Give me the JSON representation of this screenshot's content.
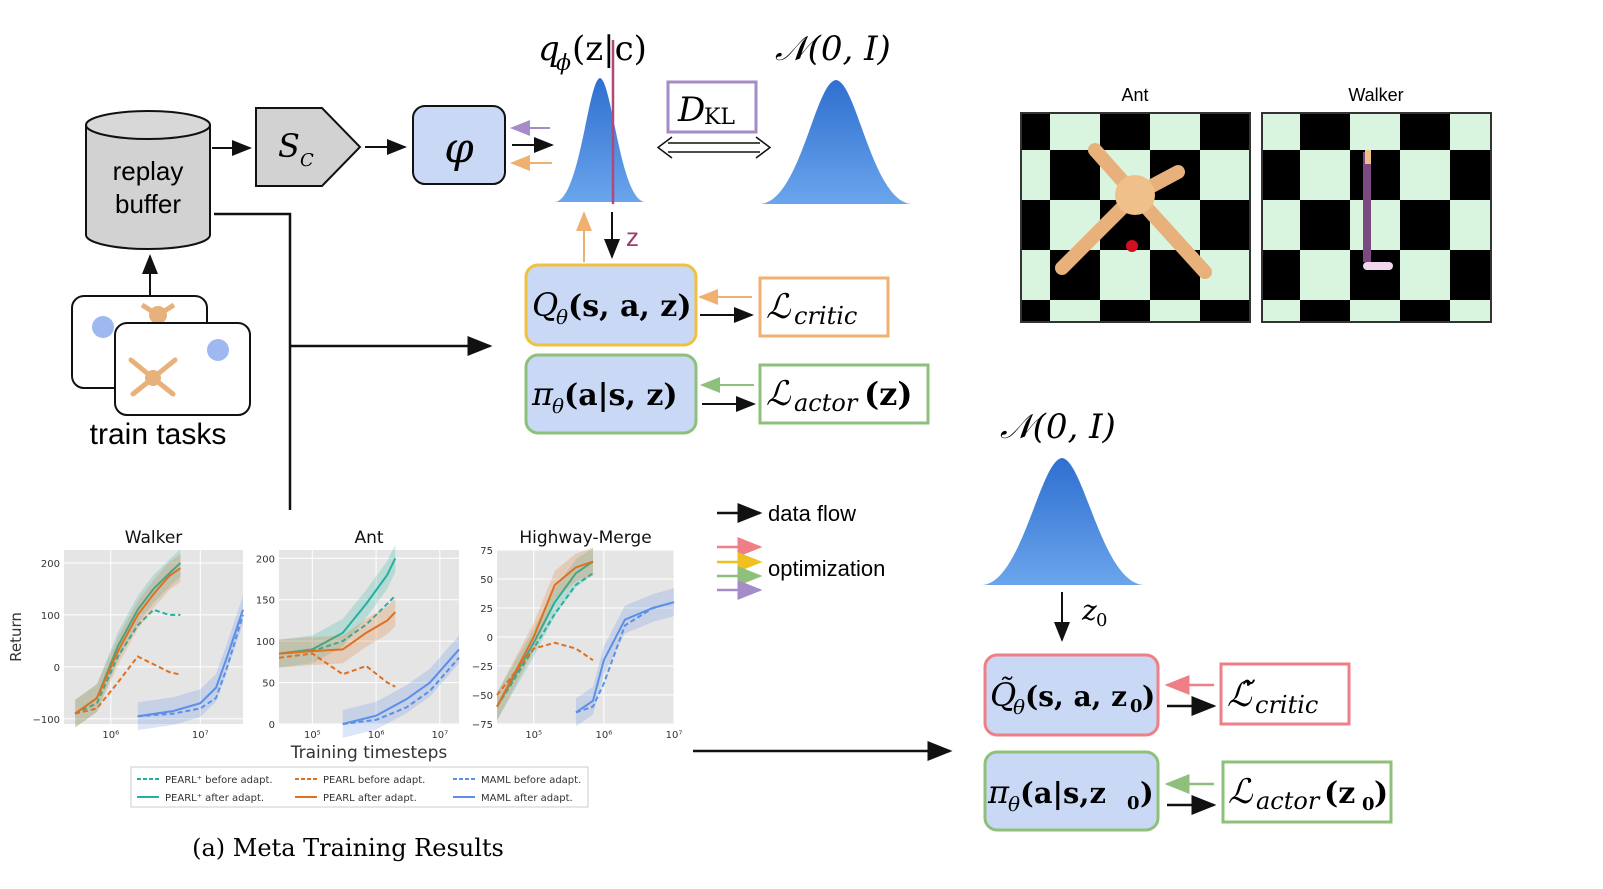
{
  "diagram": {
    "replay_buffer": [
      "replay",
      "buffer"
    ],
    "sampler": "S",
    "sampler_sub": "C",
    "encoder": "φ",
    "posterior": {
      "q": "q",
      "phi": "ϕ",
      "arg": "(z|c)"
    },
    "prior": "𝒩(0, I)",
    "kl": {
      "d": "D",
      "sub": "KL"
    },
    "z_label": "z",
    "q_func": {
      "q": "Q",
      "theta": "θ",
      "arg": "(s, a, z)"
    },
    "q_loss": {
      "l": "ℒ",
      "sub": "critic"
    },
    "policy": {
      "pi": "π",
      "theta": "θ",
      "arg": "(a|s, z)"
    },
    "policy_loss": {
      "l": "ℒ",
      "sub": "actor",
      "arg": "(z)"
    },
    "train_tasks": "train tasks",
    "legend_data_flow": "data flow",
    "legend_optimization": "optimization",
    "prior2": "𝒩(0, I)",
    "z0": {
      "z": "z",
      "sub": "0"
    },
    "q_func2": {
      "q": "Q̃",
      "theta": "θ",
      "arg": "(s, a, z",
      "sub": "0",
      "close": ")"
    },
    "q_loss2": {
      "l": "ℒ̃",
      "sub": "critic"
    },
    "policy2": {
      "pi": "π",
      "theta": "θ",
      "arg": "(a|s,z",
      "sub": "0",
      "close": ")"
    },
    "policy_loss2": {
      "l": "ℒ",
      "sub": "actor",
      "arg": "(z",
      "sub2": "0",
      "close": ")"
    }
  },
  "env_images": {
    "ant_title": "Ant",
    "walker_title": "Walker"
  },
  "colors": {
    "blue_box": "#c9d8f5",
    "orange": "#f0c060",
    "green": "#8ec07c",
    "purple": "#a58cc8",
    "red": "#ef7f86",
    "gauss": "#4f8fdc",
    "pearl_plus": "#21b3a0",
    "pearl": "#e07020",
    "maml": "#5b8fe8",
    "checker_light": "#d9f5df"
  },
  "chart_data": [
    {
      "type": "line",
      "title": "Walker",
      "ylabel": "Return",
      "xlabel": "",
      "xscale": "log",
      "xlim": [
        300000,
        30000000
      ],
      "ylim": [
        -110,
        225
      ],
      "yticks": [
        "−100",
        "0",
        "100",
        "200"
      ],
      "ytick_values": [
        -100,
        0,
        100,
        200
      ],
      "xticks": [
        "10⁶",
        "10⁷"
      ],
      "xtick_values": [
        1000000,
        10000000
      ],
      "grid": true,
      "series": [
        {
          "name": "PEARL⁺ before adapt.",
          "dashed": true,
          "color": "#21b3a0",
          "x": [
            400000,
            700000,
            1200000,
            2000000,
            3000000,
            4500000,
            6000000
          ],
          "y": [
            -90,
            -70,
            20,
            80,
            110,
            100,
            100
          ]
        },
        {
          "name": "PEARL⁺ after adapt.",
          "dashed": false,
          "color": "#21b3a0",
          "x": [
            400000,
            700000,
            1200000,
            2000000,
            3000000,
            4500000,
            6000000
          ],
          "y": [
            -90,
            -60,
            40,
            110,
            150,
            180,
            200
          ]
        },
        {
          "name": "PEARL before adapt.",
          "dashed": true,
          "color": "#e07020",
          "x": [
            400000,
            700000,
            1200000,
            2000000,
            3000000,
            4500000,
            6000000
          ],
          "y": [
            -90,
            -80,
            -30,
            20,
            5,
            -10,
            -15
          ]
        },
        {
          "name": "PEARL after adapt.",
          "dashed": false,
          "color": "#e07020",
          "x": [
            400000,
            700000,
            1200000,
            2000000,
            3000000,
            4500000,
            6000000
          ],
          "y": [
            -90,
            -60,
            30,
            100,
            140,
            175,
            190
          ]
        },
        {
          "name": "MAML before adapt.",
          "dashed": true,
          "color": "#5b8fe8",
          "x": [
            2000000,
            5000000,
            10000000,
            15000000,
            20000000,
            30000000
          ],
          "y": [
            -95,
            -90,
            -80,
            -60,
            0,
            100
          ]
        },
        {
          "name": "MAML after adapt.",
          "dashed": false,
          "color": "#5b8fe8",
          "x": [
            2000000,
            5000000,
            10000000,
            15000000,
            20000000,
            30000000
          ],
          "y": [
            -95,
            -85,
            -70,
            -40,
            20,
            110
          ]
        }
      ]
    },
    {
      "type": "line",
      "title": "Ant",
      "xlabel": "Training timesteps",
      "ylabel": "",
      "xscale": "log",
      "xlim": [
        30000,
        20000000
      ],
      "ylim": [
        0,
        210
      ],
      "yticks": [
        "0",
        "50",
        "100",
        "150",
        "200"
      ],
      "ytick_values": [
        0,
        50,
        100,
        150,
        200
      ],
      "xticks": [
        "10⁵",
        "10⁶",
        "10⁷"
      ],
      "xtick_values": [
        100000,
        1000000,
        10000000
      ],
      "grid": true,
      "series": [
        {
          "name": "PEARL⁺ before adapt.",
          "dashed": true,
          "color": "#21b3a0",
          "x": [
            30000,
            100000,
            300000,
            700000,
            1500000,
            2000000
          ],
          "y": [
            85,
            88,
            100,
            120,
            145,
            155
          ]
        },
        {
          "name": "PEARL⁺ after adapt.",
          "dashed": false,
          "color": "#21b3a0",
          "x": [
            30000,
            100000,
            300000,
            700000,
            1500000,
            2000000
          ],
          "y": [
            85,
            90,
            110,
            145,
            180,
            200
          ]
        },
        {
          "name": "PEARL before adapt.",
          "dashed": true,
          "color": "#e07020",
          "x": [
            30000,
            100000,
            300000,
            700000,
            1500000,
            2000000
          ],
          "y": [
            80,
            85,
            60,
            70,
            50,
            45
          ]
        },
        {
          "name": "PEARL after adapt.",
          "dashed": false,
          "color": "#e07020",
          "x": [
            30000,
            100000,
            300000,
            700000,
            1500000,
            2000000
          ],
          "y": [
            85,
            88,
            90,
            110,
            125,
            135
          ]
        },
        {
          "name": "MAML before adapt.",
          "dashed": true,
          "color": "#5b8fe8",
          "x": [
            300000,
            1000000,
            3000000,
            7000000,
            20000000
          ],
          "y": [
            0,
            5,
            20,
            40,
            80
          ]
        },
        {
          "name": "MAML after adapt.",
          "dashed": false,
          "color": "#5b8fe8",
          "x": [
            300000,
            1000000,
            3000000,
            7000000,
            20000000
          ],
          "y": [
            0,
            10,
            30,
            50,
            90
          ]
        }
      ]
    },
    {
      "type": "line",
      "title": "Highway-Merge",
      "xlabel": "",
      "ylabel": "",
      "xscale": "log",
      "xlim": [
        30000,
        10000000
      ],
      "ylim": [
        -75,
        75
      ],
      "yticks": [
        "−75",
        "−50",
        "−25",
        "0",
        "25",
        "50",
        "75"
      ],
      "ytick_values": [
        -75,
        -50,
        -25,
        0,
        25,
        50,
        75
      ],
      "xticks": [
        "10⁵",
        "10⁶",
        "10⁷"
      ],
      "xtick_values": [
        100000,
        1000000,
        10000000
      ],
      "grid": true,
      "series": [
        {
          "name": "PEARL⁺ before adapt.",
          "dashed": true,
          "color": "#21b3a0",
          "x": [
            30000,
            100000,
            200000,
            400000,
            700000
          ],
          "y": [
            -60,
            -10,
            20,
            45,
            55
          ]
        },
        {
          "name": "PEARL⁺ after adapt.",
          "dashed": false,
          "color": "#21b3a0",
          "x": [
            30000,
            100000,
            200000,
            400000,
            700000
          ],
          "y": [
            -60,
            -5,
            30,
            55,
            65
          ]
        },
        {
          "name": "PEARL before adapt.",
          "dashed": true,
          "color": "#e07020",
          "x": [
            30000,
            100000,
            200000,
            400000,
            700000
          ],
          "y": [
            -50,
            -10,
            -5,
            -10,
            -20
          ]
        },
        {
          "name": "PEARL after adapt.",
          "dashed": false,
          "color": "#e07020",
          "x": [
            30000,
            100000,
            200000,
            400000,
            700000
          ],
          "y": [
            -60,
            0,
            45,
            60,
            65
          ]
        },
        {
          "name": "MAML before adapt.",
          "dashed": true,
          "color": "#5b8fe8",
          "x": [
            400000,
            700000,
            1000000,
            2000000,
            5000000,
            10000000
          ],
          "y": [
            -65,
            -60,
            -40,
            10,
            25,
            30
          ]
        },
        {
          "name": "MAML after adapt.",
          "dashed": false,
          "color": "#5b8fe8",
          "x": [
            400000,
            700000,
            1000000,
            2000000,
            5000000,
            10000000
          ],
          "y": [
            -65,
            -55,
            -20,
            15,
            25,
            30
          ]
        }
      ]
    }
  ],
  "chart_legend": [
    {
      "label": "PEARL⁺ before adapt.",
      "color": "#21b3a0",
      "dashed": true
    },
    {
      "label": "PEARL before adapt.",
      "color": "#e07020",
      "dashed": true
    },
    {
      "label": "MAML before adapt.",
      "color": "#5b8fe8",
      "dashed": true
    },
    {
      "label": "PEARL⁺ after adapt.",
      "color": "#21b3a0",
      "dashed": false
    },
    {
      "label": "PEARL after adapt.",
      "color": "#e07020",
      "dashed": false
    },
    {
      "label": "MAML after adapt.",
      "color": "#5b8fe8",
      "dashed": false
    }
  ],
  "caption": "(a) Meta Training Results"
}
